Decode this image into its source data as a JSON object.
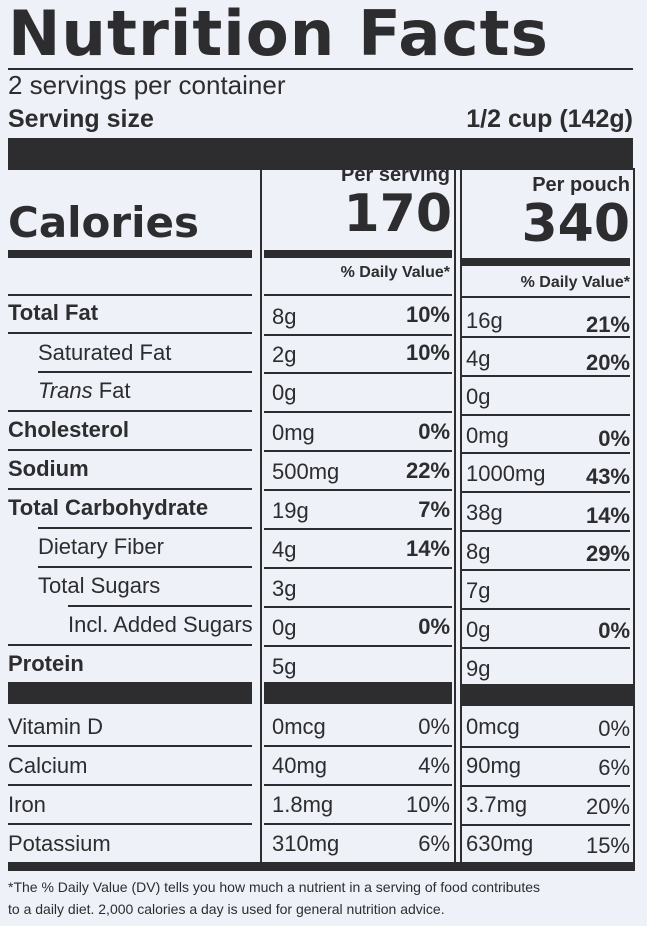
{
  "title": "Nutrition Facts",
  "servings_per_container": "2 servings per container",
  "serving_size_label": "Serving size",
  "serving_size_value": "1/2 cup (142g)",
  "calories_label": "Calories",
  "per_serving_label": "Per serving",
  "per_serving_calories": "170",
  "per_pouch_label": "Per pouch",
  "per_pouch_calories": "340",
  "daily_value_header": "% Daily Value*",
  "nutrients": [
    {
      "label": "Total Fat",
      "serving_amount": "8g",
      "serving_dv": "10%",
      "pouch_amount": "16g",
      "pouch_dv": "21%"
    },
    {
      "label": "Saturated Fat",
      "serving_amount": "2g",
      "serving_dv": "10%",
      "pouch_amount": "4g",
      "pouch_dv": "20%"
    },
    {
      "label_prefix": "Trans",
      "label": "Fat",
      "serving_amount": "0g",
      "serving_dv": "",
      "pouch_amount": "0g",
      "pouch_dv": ""
    },
    {
      "label": "Cholesterol",
      "serving_amount": "0mg",
      "serving_dv": "0%",
      "pouch_amount": "0mg",
      "pouch_dv": "0%"
    },
    {
      "label": "Sodium",
      "serving_amount": "500mg",
      "serving_dv": "22%",
      "pouch_amount": "1000mg",
      "pouch_dv": "43%"
    },
    {
      "label": "Total Carbohydrate",
      "serving_amount": "19g",
      "serving_dv": "7%",
      "pouch_amount": "38g",
      "pouch_dv": "14%"
    },
    {
      "label": "Dietary Fiber",
      "serving_amount": "4g",
      "serving_dv": "14%",
      "pouch_amount": "8g",
      "pouch_dv": "29%"
    },
    {
      "label": "Total Sugars",
      "serving_amount": "3g",
      "serving_dv": "",
      "pouch_amount": "7g",
      "pouch_dv": ""
    },
    {
      "label": "Incl. Added Sugars",
      "serving_amount": "0g",
      "serving_dv": "0%",
      "pouch_amount": "0g",
      "pouch_dv": "0%"
    },
    {
      "label": "Protein",
      "serving_amount": "5g",
      "serving_dv": "",
      "pouch_amount": "9g",
      "pouch_dv": ""
    }
  ],
  "vitamins": [
    {
      "label": "Vitamin D",
      "serving_amount": "0mcg",
      "serving_dv": "0%",
      "pouch_amount": "0mcg",
      "pouch_dv": "0%"
    },
    {
      "label": "Calcium",
      "serving_amount": "40mg",
      "serving_dv": "4%",
      "pouch_amount": "90mg",
      "pouch_dv": "6%"
    },
    {
      "label": "Iron",
      "serving_amount": "1.8mg",
      "serving_dv": "10%",
      "pouch_amount": "3.7mg",
      "pouch_dv": "20%"
    },
    {
      "label": "Potassium",
      "serving_amount": "310mg",
      "serving_dv": "6%",
      "pouch_amount": "630mg",
      "pouch_dv": "15%"
    }
  ],
  "footnote_line1": "*The % Daily Value (DV) tells you how much a nutrient in a serving of food contributes",
  "footnote_line2": "to a daily diet. 2,000 calories a day is used for general nutrition advice."
}
